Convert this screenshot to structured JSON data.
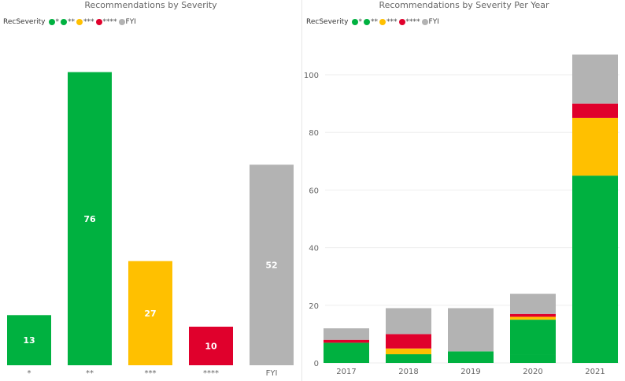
{
  "chart_data": [
    {
      "type": "bar",
      "title": "Recommendations by Severity",
      "legend_title": "RecSeverity",
      "legend": [
        {
          "label": "*",
          "color": "#00b140"
        },
        {
          "label": "**",
          "color": "#00b140"
        },
        {
          "label": "***",
          "color": "#ffc000"
        },
        {
          "label": "****",
          "color": "#e0002c"
        },
        {
          "label": "FYI",
          "color": "#b3b3b3"
        }
      ],
      "categories": [
        "*",
        "**",
        "***",
        "****",
        "FYI"
      ],
      "values": [
        13,
        76,
        27,
        10,
        52
      ],
      "colors": [
        "#00b140",
        "#00b140",
        "#ffc000",
        "#e0002c",
        "#b3b3b3"
      ],
      "ylim": [
        0,
        80
      ],
      "data_labels": true,
      "legend_position": "top-left",
      "grid": false
    },
    {
      "type": "bar",
      "stacked": true,
      "title": "Recommendations by Severity Per Year",
      "legend_title": "RecSeverity",
      "legend": [
        {
          "label": "*",
          "color": "#00b140"
        },
        {
          "label": "**",
          "color": "#00b140"
        },
        {
          "label": "***",
          "color": "#ffc000"
        },
        {
          "label": "****",
          "color": "#e0002c"
        },
        {
          "label": "FYI",
          "color": "#b3b3b3"
        }
      ],
      "categories": [
        "2017",
        "2018",
        "2019",
        "2020",
        "2021"
      ],
      "series": [
        {
          "name": "*",
          "color": "#00b140",
          "values": [
            0,
            0,
            0,
            3,
            0
          ]
        },
        {
          "name": "**",
          "color": "#00b140",
          "values": [
            7,
            3,
            4,
            12,
            65
          ]
        },
        {
          "name": "***",
          "color": "#ffc000",
          "values": [
            0,
            2,
            0,
            1,
            20
          ]
        },
        {
          "name": "****",
          "color": "#e0002c",
          "values": [
            1,
            5,
            0,
            1,
            5
          ]
        },
        {
          "name": "FYI",
          "color": "#b3b3b3",
          "values": [
            4,
            9,
            15,
            7,
            17
          ]
        }
      ],
      "yticks": [
        0,
        20,
        40,
        60,
        80,
        100
      ],
      "ylim": [
        0,
        112
      ],
      "grid": true,
      "legend_position": "top-left"
    }
  ]
}
